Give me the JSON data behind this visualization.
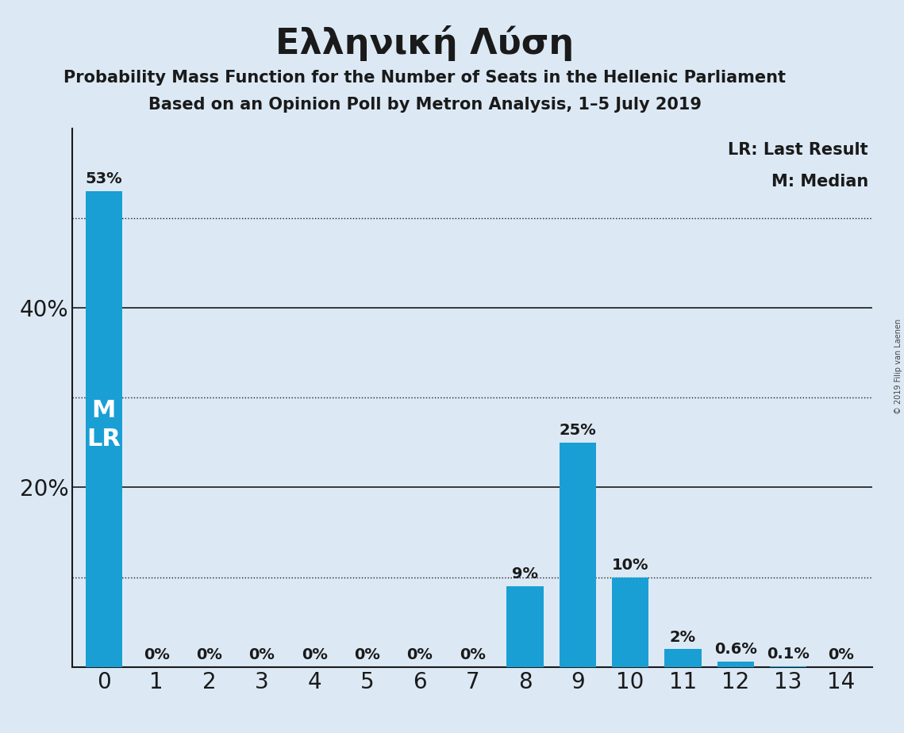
{
  "title": "Ελληνική Λύση",
  "subtitle1": "Probability Mass Function for the Number of Seats in the Hellenic Parliament",
  "subtitle2": "Based on an Opinion Poll by Metron Analysis, 1–5 July 2019",
  "copyright": "© 2019 Filip van Laenen",
  "categories": [
    0,
    1,
    2,
    3,
    4,
    5,
    6,
    7,
    8,
    9,
    10,
    11,
    12,
    13,
    14
  ],
  "values": [
    53,
    0,
    0,
    0,
    0,
    0,
    0,
    0,
    9,
    25,
    10,
    2,
    0.6,
    0.1,
    0
  ],
  "bar_color": "#1a9fd4",
  "background_color": "#dce9f5",
  "text_color": "#1a1a1a",
  "gridline_color": "#1a1a1a",
  "bar_label_color_inside": "#ffffff",
  "bar_label_color_outside": "#1a1a1a",
  "ylim": [
    0,
    60
  ],
  "solid_gridlines": [
    20,
    40
  ],
  "dotted_gridlines": [
    10,
    30,
    50
  ],
  "legend_lr": "LR: Last Result",
  "legend_m": "M: Median",
  "title_fontsize": 32,
  "subtitle_fontsize": 15,
  "bar_label_fontsize": 14,
  "legend_fontsize": 15,
  "tick_fontsize": 20,
  "ml_fontsize": 22
}
